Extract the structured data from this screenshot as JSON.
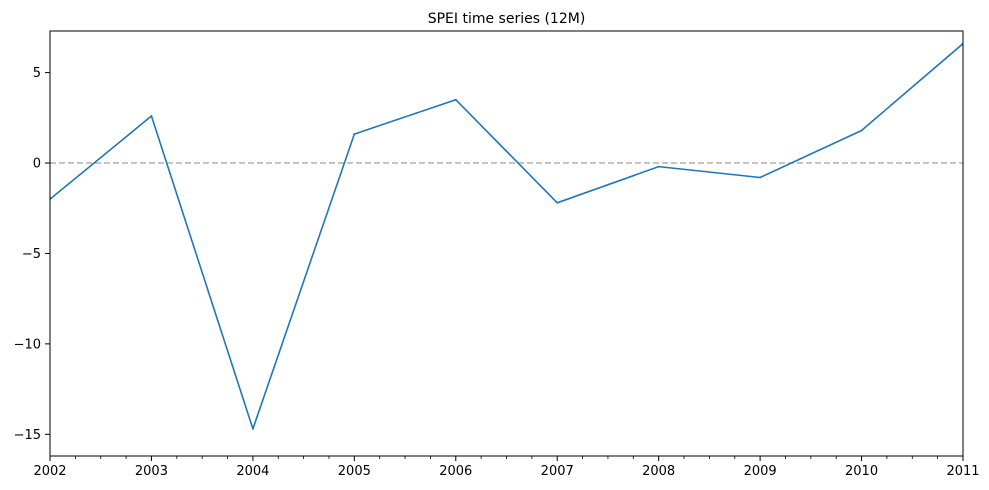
{
  "chart_data": {
    "type": "line",
    "title": "SPEI time series (12M)",
    "xlabel": "",
    "ylabel": "",
    "x": [
      "2002",
      "2003",
      "2004",
      "2005",
      "2006",
      "2007",
      "2008",
      "2009",
      "2010",
      "2011"
    ],
    "xlim": [
      "2002",
      "2011"
    ],
    "x_tick_labels": [
      "2002",
      "2003",
      "2004",
      "2005",
      "2006",
      "2007",
      "2008",
      "2009",
      "2010",
      "2011"
    ],
    "ylim": [
      -16.2,
      7.3
    ],
    "y_ticks": [
      5,
      0,
      -5,
      -10,
      -15
    ],
    "y_tick_labels": [
      "5",
      "0",
      "−5",
      "−10",
      "−15"
    ],
    "series": [
      {
        "values": [
          -2.0,
          2.6,
          -14.7,
          1.6,
          3.5,
          -2.2,
          -0.2,
          -0.8,
          1.8,
          6.6
        ],
        "color": "#1f77b4"
      }
    ],
    "reference_line": {
      "y": 0,
      "style": "dashed",
      "color": "#b0b0b0"
    },
    "grid": false,
    "legend": "none"
  }
}
